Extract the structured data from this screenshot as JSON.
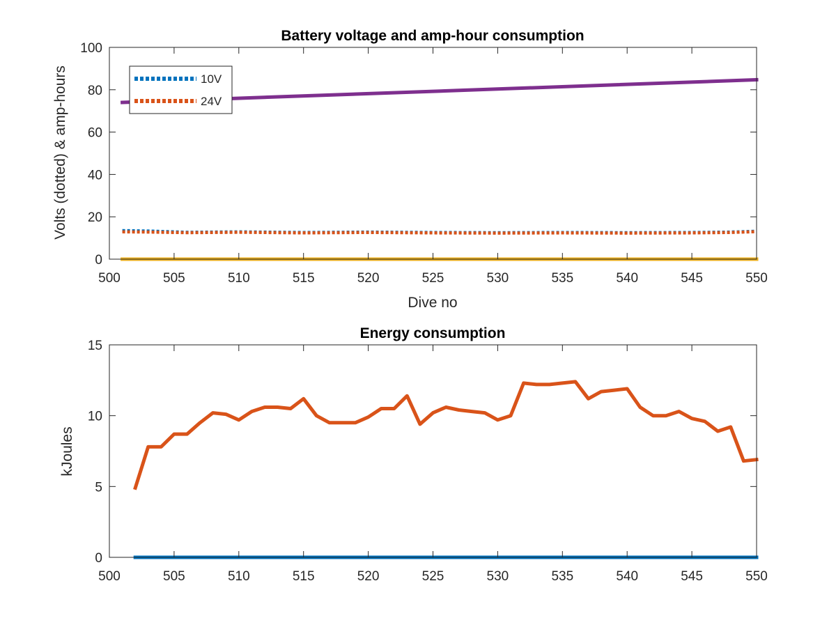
{
  "chart_data": [
    {
      "type": "line",
      "title": "Battery voltage and amp-hour consumption",
      "xlabel": "Dive no",
      "ylabel": "Volts (dotted) & amp-hours",
      "xlim": [
        500,
        550
      ],
      "ylim": [
        0,
        100
      ],
      "xticks": [
        "500",
        "505",
        "510",
        "515",
        "520",
        "525",
        "530",
        "535",
        "540",
        "545",
        "550"
      ],
      "yticks": [
        "0",
        "20",
        "40",
        "60",
        "80",
        "100"
      ],
      "grid": false,
      "legend_position": "top-left",
      "series": [
        {
          "name": "10V",
          "style": "dotted",
          "color": "#0072BD",
          "x": [
            501,
            503,
            506,
            510,
            515,
            520,
            525,
            530,
            535,
            540,
            545,
            548,
            550
          ],
          "y": [
            13.5,
            13.3,
            12.7,
            12.9,
            12.6,
            12.8,
            12.6,
            12.5,
            12.6,
            12.5,
            12.6,
            12.8,
            13.2
          ]
        },
        {
          "name": "24V",
          "style": "dotted",
          "color": "#D95319",
          "x": [
            501,
            503,
            506,
            510,
            515,
            520,
            525,
            530,
            535,
            540,
            545,
            548,
            550
          ],
          "y": [
            12.9,
            12.8,
            12.5,
            12.7,
            12.4,
            12.6,
            12.4,
            12.3,
            12.4,
            12.3,
            12.4,
            12.6,
            13.0
          ]
        },
        {
          "style": "solid",
          "color": "#EDB120",
          "x": [
            501,
            550
          ],
          "y": [
            0,
            0
          ]
        },
        {
          "style": "solid",
          "color": "#7E2F8E",
          "x": [
            501,
            550
          ],
          "y": [
            74,
            84.7
          ]
        }
      ]
    },
    {
      "type": "line",
      "title": "Energy consumption",
      "xlabel": "",
      "ylabel": "kJoules",
      "xlim": [
        500,
        550
      ],
      "ylim": [
        0,
        15
      ],
      "xticks": [
        "500",
        "505",
        "510",
        "515",
        "520",
        "525",
        "530",
        "535",
        "540",
        "545",
        "550"
      ],
      "yticks": [
        "0",
        "5",
        "10",
        "15"
      ],
      "grid": false,
      "series": [
        {
          "style": "solid",
          "color": "#D95319",
          "x": [
            502,
            503,
            504,
            505,
            506,
            507,
            508,
            509,
            510,
            511,
            512,
            513,
            514,
            515,
            516,
            517,
            518,
            519,
            520,
            521,
            522,
            523,
            524,
            525,
            526,
            527,
            528,
            529,
            530,
            531,
            532,
            533,
            534,
            535,
            536,
            537,
            538,
            539,
            540,
            541,
            542,
            543,
            544,
            545,
            546,
            547,
            548,
            549,
            550
          ],
          "y": [
            4.9,
            7.8,
            7.8,
            8.7,
            8.7,
            9.5,
            10.2,
            10.1,
            9.7,
            10.3,
            10.6,
            10.6,
            10.5,
            11.2,
            10.0,
            9.5,
            9.5,
            9.5,
            9.9,
            10.5,
            10.5,
            11.4,
            9.4,
            10.2,
            10.6,
            10.4,
            10.3,
            10.2,
            9.7,
            10.0,
            12.3,
            12.2,
            12.2,
            12.3,
            12.4,
            11.2,
            11.7,
            11.8,
            11.9,
            10.6,
            10.0,
            10.0,
            10.3,
            9.8,
            9.6,
            8.9,
            9.2,
            6.8,
            6.9
          ]
        },
        {
          "style": "solid",
          "color": "#0072BD",
          "x": [
            502,
            550
          ],
          "y": [
            0,
            0
          ]
        }
      ]
    }
  ]
}
